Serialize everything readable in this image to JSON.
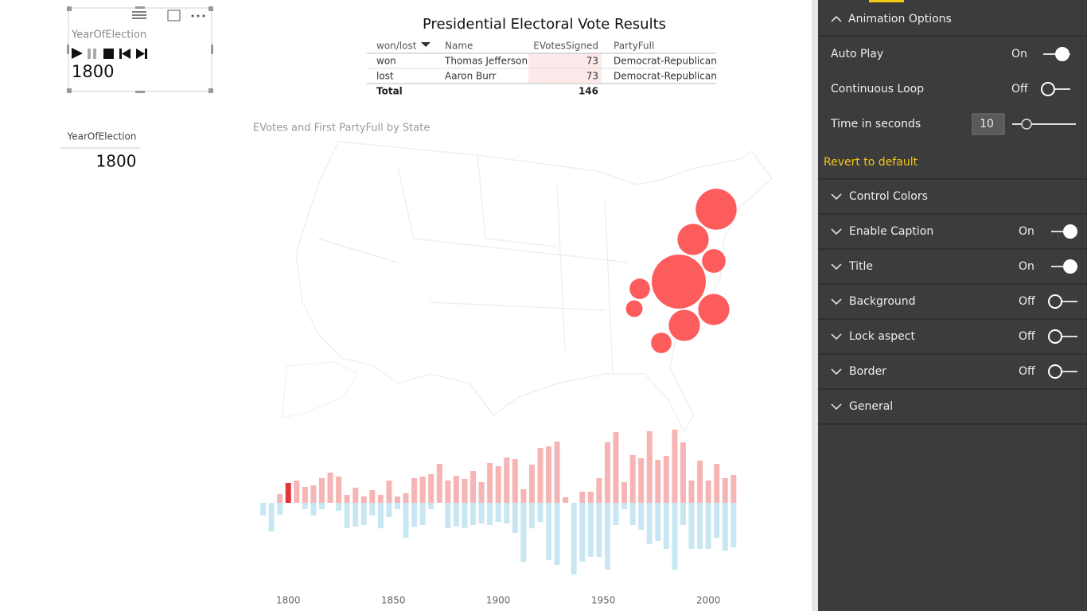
{
  "play_axis": {
    "field": "YearOfElection",
    "value": 1800
  },
  "card": {
    "label": "YearOfElection",
    "value": 1800
  },
  "table": {
    "title": "Presidential Electoral Vote Results",
    "columns": [
      "won/lost",
      "Name",
      "EVotesSigned",
      "PartyFull"
    ],
    "rows": [
      [
        "won",
        "Thomas Jefferson",
        73,
        "Democrat-Republican"
      ],
      [
        "lost",
        "Aaron Burr",
        73,
        "Democrat-Republican"
      ]
    ],
    "total": {
      "label": "Total",
      "value": 146
    }
  },
  "map": {
    "title": "EVotes and First PartyFull by State",
    "color": "#fd5c5c",
    "values": [
      12,
      7,
      4,
      21,
      3,
      2,
      7,
      7,
      3
    ]
  },
  "chart_data": {
    "type": "bar",
    "x": [
      1788,
      1792,
      1796,
      1800,
      1804,
      1808,
      1812,
      1816,
      1820,
      1824,
      1828,
      1832,
      1836,
      1840,
      1844,
      1848,
      1852,
      1856,
      1860,
      1864,
      1868,
      1872,
      1876,
      1880,
      1884,
      1888,
      1892,
      1896,
      1900,
      1904,
      1908,
      1912,
      1916,
      1920,
      1924,
      1928,
      1932,
      1936,
      1940,
      1944,
      1948,
      1952,
      1956,
      1960,
      1964,
      1968,
      1972,
      1976,
      1980,
      1984,
      1988,
      1992,
      1996,
      2000,
      2004,
      2008,
      2012
    ],
    "series": [
      {
        "color": "#f7b4b4",
        "values": [
          0,
          0,
          11,
          25,
          28,
          20,
          22,
          31,
          38,
          33,
          10,
          19,
          8,
          16,
          10,
          28,
          8,
          12,
          31,
          33,
          36,
          49,
          28,
          34,
          30,
          40,
          26,
          50,
          46,
          57,
          55,
          17,
          48,
          69,
          71,
          77,
          7,
          0,
          14,
          14,
          31,
          76,
          89,
          26,
          60,
          56,
          90,
          54,
          59,
          92,
          76,
          28,
          53,
          28,
          49,
          31,
          35
        ]
      },
      {
        "color": "#c8e7f2",
        "values": [
          -16,
          -36,
          -15,
          0,
          0,
          -8,
          -16,
          -8,
          0,
          -10,
          -32,
          -30,
          -28,
          -16,
          -32,
          -18,
          -8,
          -44,
          -30,
          -28,
          -8,
          0,
          -32,
          -30,
          -32,
          -28,
          -26,
          -28,
          -24,
          -26,
          -38,
          -74,
          -32,
          -24,
          -72,
          -78,
          0,
          -90,
          -74,
          -68,
          -68,
          -84,
          -28,
          -8,
          -28,
          -34,
          -52,
          -48,
          -58,
          -84,
          -28,
          -58,
          -58,
          -58,
          -44,
          -60,
          -56
        ]
      }
    ],
    "highlight_color": "#e0363a",
    "xlim": [
      1784,
      2017
    ],
    "xticks": [
      1800,
      1850,
      1900,
      1950,
      2000
    ],
    "ylim": [
      -100,
      100
    ],
    "grid": false
  },
  "pane": {
    "header": "Animation Options",
    "settings": [
      {
        "label": "Auto Play",
        "state": "On"
      },
      {
        "label": "Continuous Loop",
        "state": "Off"
      },
      {
        "label": "Time in seconds",
        "value": 10
      }
    ],
    "revert": "Revert to default",
    "sections": [
      {
        "label": "Control Colors"
      },
      {
        "label": "Enable Caption",
        "state": "On"
      },
      {
        "label": "Title",
        "state": "On"
      },
      {
        "label": "Background",
        "state": "Off"
      },
      {
        "label": "Lock aspect",
        "state": "Off"
      },
      {
        "label": "Border",
        "state": "Off"
      },
      {
        "label": "General"
      }
    ]
  }
}
